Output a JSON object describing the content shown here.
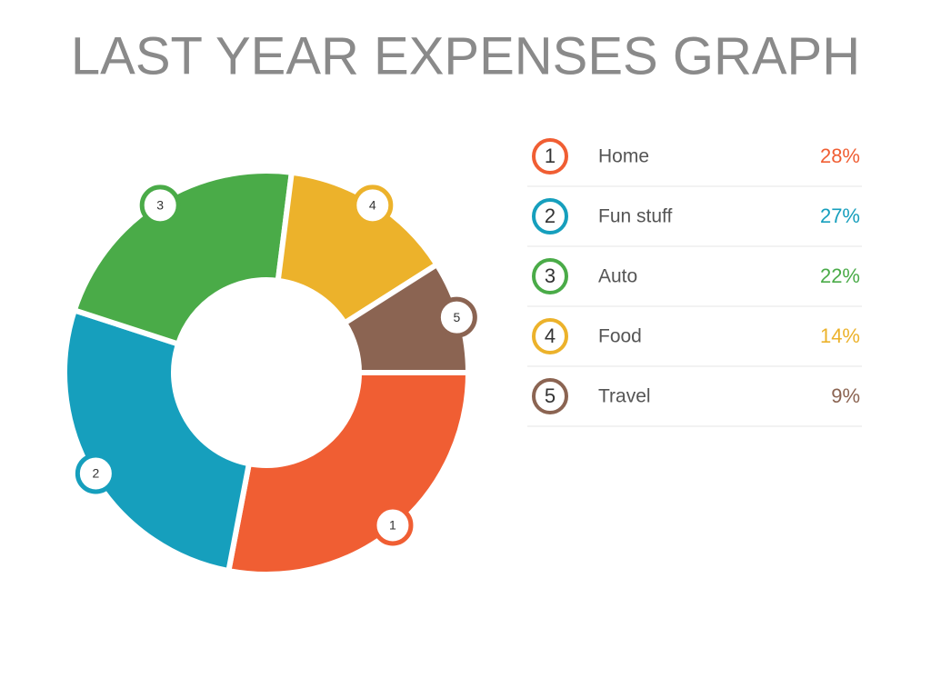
{
  "chart_data": {
    "type": "donut",
    "title": "LAST YEAR EXPENSES GRAPH",
    "categories": [
      "Home",
      "Fun stuff",
      "Auto",
      "Food",
      "Travel"
    ],
    "values": [
      28,
      27,
      22,
      14,
      9
    ],
    "value_labels": [
      "28%",
      "27%",
      "22%",
      "14%",
      "9%"
    ],
    "markers": [
      "1",
      "2",
      "3",
      "4",
      "5"
    ],
    "colors": [
      "#f05e33",
      "#169fbd",
      "#4aab48",
      "#ecb22b",
      "#8b6452"
    ]
  }
}
